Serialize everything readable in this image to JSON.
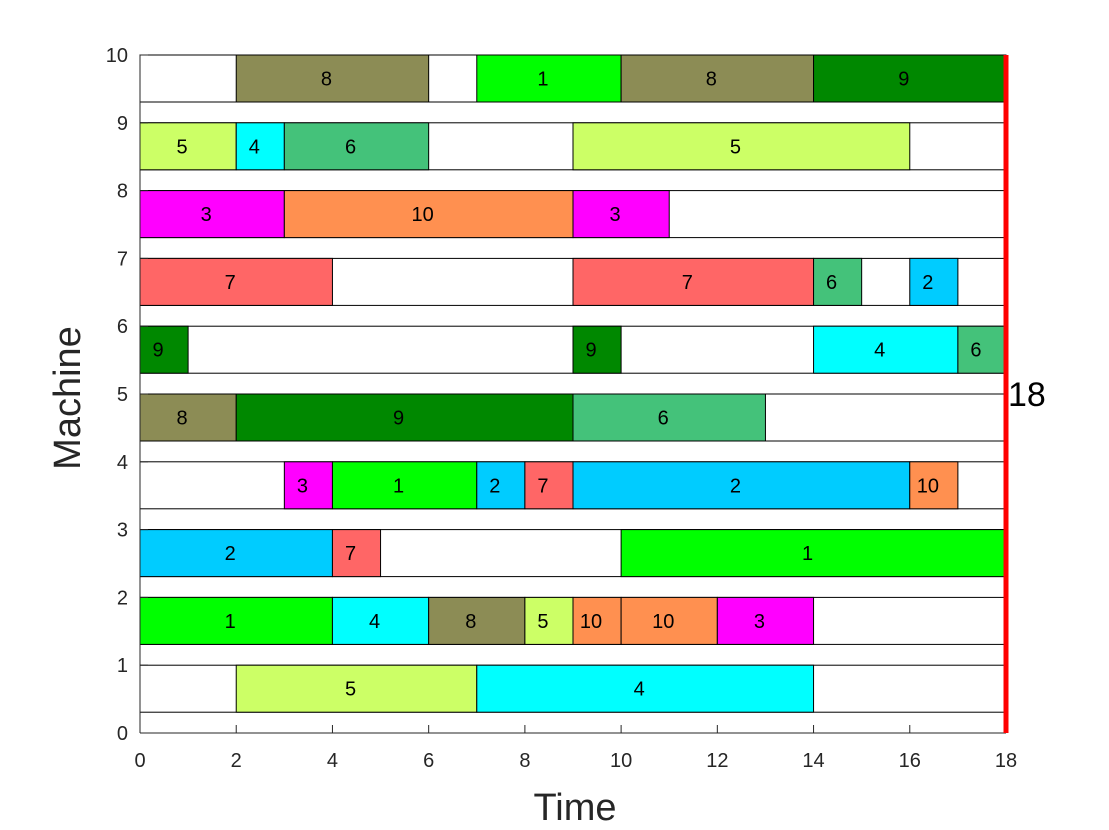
{
  "chart_data": {
    "type": "gantt",
    "title": "",
    "xlabel": "Time",
    "ylabel": "Machine",
    "xlim": [
      0,
      18
    ],
    "ylim": [
      0,
      10
    ],
    "xticks": [
      0,
      2,
      4,
      6,
      8,
      10,
      12,
      14,
      16,
      18
    ],
    "yticks": [
      0,
      1,
      2,
      3,
      4,
      5,
      6,
      7,
      8,
      9,
      10
    ],
    "grid": false,
    "makespan": 18,
    "makespan_label": "18",
    "makespan_color": "#ff0000",
    "job_colors": {
      "1": "#00ff00",
      "2": "#00ccff",
      "3": "#ff00ff",
      "4": "#00ffff",
      "5": "#ccff66",
      "6": "#44c27a",
      "7": "#ff6666",
      "8": "#8c8c55",
      "9": "#008800",
      "10": "#ff9050"
    },
    "machines": [
      {
        "machine": 1,
        "tasks": [
          {
            "job": "5",
            "start": 2,
            "end": 7
          },
          {
            "job": "4",
            "start": 7,
            "end": 14
          }
        ]
      },
      {
        "machine": 2,
        "tasks": [
          {
            "job": "1",
            "start": 0,
            "end": 4
          },
          {
            "job": "4",
            "start": 4,
            "end": 6
          },
          {
            "job": "8",
            "start": 6,
            "end": 8
          },
          {
            "job": "5",
            "start": 8,
            "end": 9
          },
          {
            "job": "10",
            "start": 9,
            "end": 10
          },
          {
            "job": "10",
            "start": 10,
            "end": 12
          },
          {
            "job": "3",
            "start": 12,
            "end": 14
          }
        ]
      },
      {
        "machine": 3,
        "tasks": [
          {
            "job": "2",
            "start": 0,
            "end": 4
          },
          {
            "job": "7",
            "start": 4,
            "end": 5
          },
          {
            "job": "1",
            "start": 10,
            "end": 18
          }
        ]
      },
      {
        "machine": 4,
        "tasks": [
          {
            "job": "3",
            "start": 3,
            "end": 4
          },
          {
            "job": "1",
            "start": 4,
            "end": 7
          },
          {
            "job": "2",
            "start": 7,
            "end": 8
          },
          {
            "job": "7",
            "start": 8,
            "end": 9
          },
          {
            "job": "2",
            "start": 9,
            "end": 16
          },
          {
            "job": "10",
            "start": 16,
            "end": 17
          }
        ]
      },
      {
        "machine": 5,
        "tasks": [
          {
            "job": "8",
            "start": 0,
            "end": 2
          },
          {
            "job": "9",
            "start": 2,
            "end": 9
          },
          {
            "job": "6",
            "start": 9,
            "end": 13
          }
        ]
      },
      {
        "machine": 6,
        "tasks": [
          {
            "job": "9",
            "start": 0,
            "end": 1
          },
          {
            "job": "9",
            "start": 9,
            "end": 10
          },
          {
            "job": "4",
            "start": 14,
            "end": 17
          },
          {
            "job": "6",
            "start": 17,
            "end": 18
          }
        ]
      },
      {
        "machine": 7,
        "tasks": [
          {
            "job": "7",
            "start": 0,
            "end": 4
          },
          {
            "job": "7",
            "start": 9,
            "end": 14
          },
          {
            "job": "6",
            "start": 14,
            "end": 15
          },
          {
            "job": "2",
            "start": 16,
            "end": 17
          }
        ]
      },
      {
        "machine": 8,
        "tasks": [
          {
            "job": "3",
            "start": 0,
            "end": 3
          },
          {
            "job": "10",
            "start": 3,
            "end": 9
          },
          {
            "job": "3",
            "start": 9,
            "end": 11
          }
        ]
      },
      {
        "machine": 9,
        "tasks": [
          {
            "job": "5",
            "start": 0,
            "end": 2
          },
          {
            "job": "4",
            "start": 2,
            "end": 3
          },
          {
            "job": "6",
            "start": 3,
            "end": 6
          },
          {
            "job": "5",
            "start": 9,
            "end": 16
          }
        ]
      },
      {
        "machine": 10,
        "tasks": [
          {
            "job": "8",
            "start": 2,
            "end": 6
          },
          {
            "job": "1",
            "start": 7,
            "end": 10
          },
          {
            "job": "8",
            "start": 10,
            "end": 14
          },
          {
            "job": "9",
            "start": 14,
            "end": 18
          }
        ]
      }
    ]
  }
}
